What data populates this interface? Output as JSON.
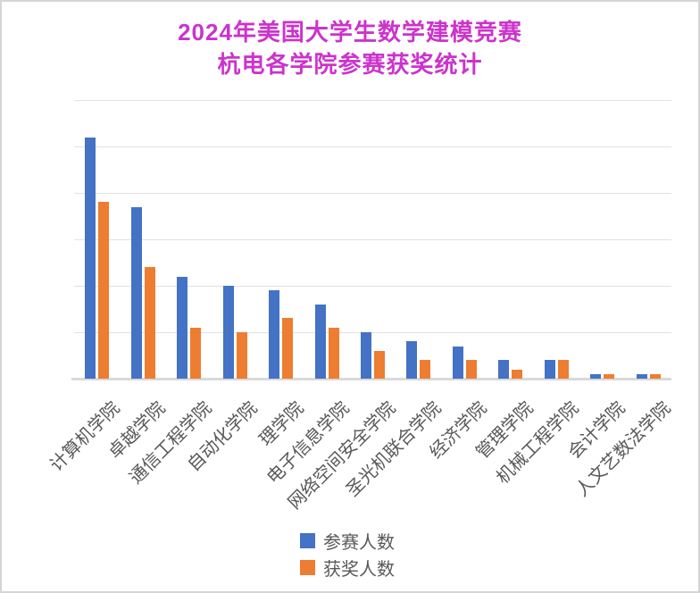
{
  "window": {
    "background": "#FFFFFF",
    "border_color": "#D5D5D5"
  },
  "title": {
    "line1": "2024年美国大学生数学建模竞赛",
    "line2": "杭电各学院参赛获奖统计",
    "color": "#CC33CC"
  },
  "chart_data": {
    "type": "bar",
    "title": "2024年美国大学生数学建模竞赛 杭电各学院参赛获奖统计",
    "categories": [
      "计算机学院",
      "卓越学院",
      "通信工程学院",
      "自动化学院",
      "理学院",
      "电子信息学院",
      "网络空间安全学院",
      "圣光机联合学院",
      "经济学院",
      "管理学院",
      "机械工程学院",
      "会计学院",
      "人文艺数法学院"
    ],
    "series": [
      {
        "name": "参赛人数",
        "color": "#4472C4",
        "values": [
          52,
          37,
          22,
          20,
          19,
          16,
          10,
          8,
          7,
          4,
          4,
          1,
          1
        ]
      },
      {
        "name": "获奖人数",
        "color": "#ED7D31",
        "values": [
          38,
          24,
          11,
          10,
          13,
          11,
          6,
          4,
          4,
          2,
          4,
          1,
          1
        ]
      }
    ],
    "xlabel": "",
    "ylabel": "",
    "ylim": [
      0,
      60
    ],
    "gridline_step": 10,
    "grid": true,
    "y_axis_labels_visible": false,
    "x_label_rotation_deg": 45,
    "legend_position": "bottom",
    "axis_label_color": "#595959",
    "gridline_color": "#E2E2E2",
    "axis_line_color": "#D9D9D9"
  }
}
